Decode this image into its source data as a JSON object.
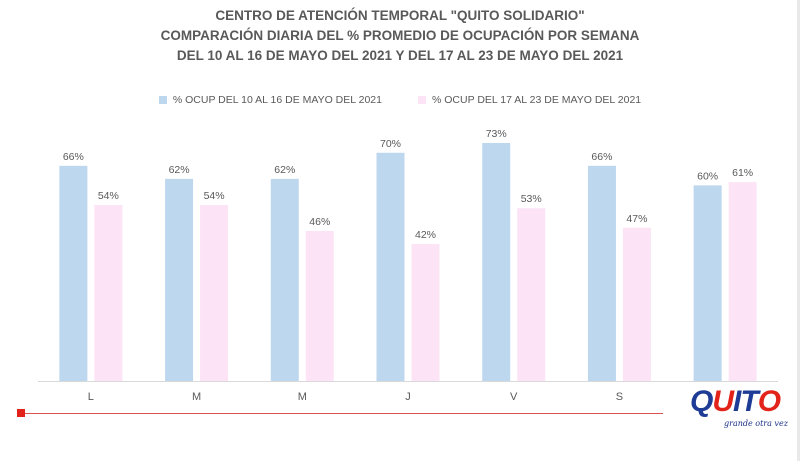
{
  "title_lines": [
    "CENTRO DE ATENCIÓN TEMPORAL \"QUITO SOLIDARIO\"",
    "COMPARACIÓN  DIARIA DEL %  PROMEDIO DE OCUPACIÓN POR SEMANA",
    "DEL 10 AL 16 DE MAYO DEL 2021 Y DEL 17 AL 23 DE MAYO DEL 2021"
  ],
  "colors": {
    "series1": "#bdd7ee",
    "series2": "#fce4f6",
    "axis": "#d9d9d9",
    "text": "#595959",
    "footer_red": "#e2231a"
  },
  "logo": {
    "letters": [
      {
        "char": "Q",
        "color": "#1e3c96"
      },
      {
        "char": "U",
        "color": "#e2231a"
      },
      {
        "char": "I",
        "color": "#1e3c96"
      },
      {
        "char": "T",
        "color": "#1e3c96"
      },
      {
        "char": "O",
        "color": "#e2231a"
      }
    ],
    "tagline": "grande otra vez"
  },
  "chart_data": {
    "type": "bar",
    "categories": [
      "L",
      "M",
      "M",
      "J",
      "V",
      "S",
      ""
    ],
    "series": [
      {
        "name": "% OCUP DEL 10 AL 16 DE MAYO DEL  2021",
        "values": [
          66,
          62,
          62,
          70,
          73,
          66,
          60
        ],
        "labels": [
          "66%",
          "62%",
          "62%",
          "70%",
          "73%",
          "66%",
          "60%"
        ]
      },
      {
        "name": "% OCUP DEL 17 AL 23 DE MAYO DEL  2021",
        "values": [
          54,
          54,
          46,
          42,
          53,
          47,
          61
        ],
        "labels": [
          "54%",
          "54%",
          "46%",
          "42%",
          "53%",
          "47%",
          "61%"
        ]
      }
    ],
    "ylim": [
      0,
      80
    ],
    "grid": false,
    "legend": "top-center"
  }
}
